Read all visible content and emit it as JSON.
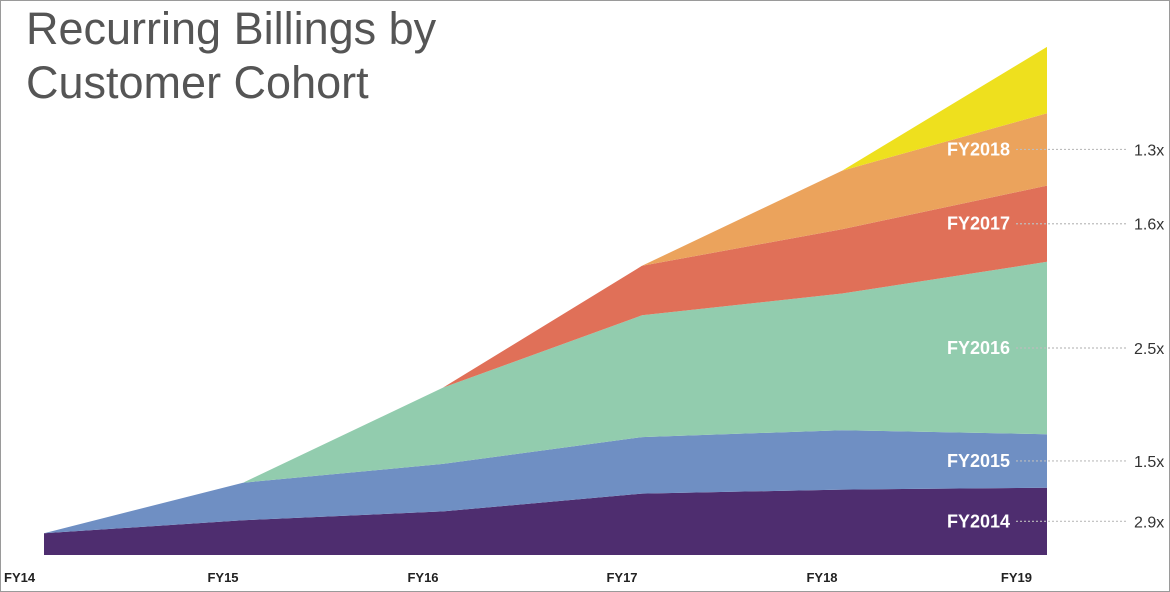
{
  "title_lines": [
    "Recurring Billings by",
    "Customer Cohort"
  ],
  "chart_data": {
    "type": "area",
    "stacked": true,
    "categories": [
      "FY14",
      "FY15",
      "FY16",
      "FY17",
      "FY18",
      "FY19"
    ],
    "series": [
      {
        "name": "FY2014",
        "color": "#4e2d6f",
        "start_index": 0,
        "values": [
          22,
          35,
          44,
          62,
          66,
          68
        ],
        "multiplier": "2.9x"
      },
      {
        "name": "FY2015",
        "color": "#6f8fc3",
        "start_index": 1,
        "values": [
          0,
          38,
          48,
          57,
          60,
          54
        ],
        "multiplier": "1.5x"
      },
      {
        "name": "FY2016",
        "color": "#92ccae",
        "start_index": 2,
        "values": [
          0,
          0,
          77,
          123,
          138,
          174
        ],
        "multiplier": "2.5x"
      },
      {
        "name": "FY2017",
        "color": "#e07058",
        "start_index": 3,
        "values": [
          0,
          0,
          0,
          50,
          65,
          77
        ],
        "multiplier": "1.6x"
      },
      {
        "name": "FY2018",
        "color": "#eba35c",
        "start_index": 4,
        "values": [
          0,
          0,
          0,
          0,
          59,
          73
        ],
        "multiplier": "1.3x"
      },
      {
        "name": "",
        "color": "#eee01e",
        "start_index": 5,
        "values": [
          0,
          0,
          0,
          0,
          0,
          67
        ],
        "multiplier": ""
      }
    ],
    "ylim": [
      0,
      520
    ],
    "grid": false,
    "legend": "inline-right"
  }
}
